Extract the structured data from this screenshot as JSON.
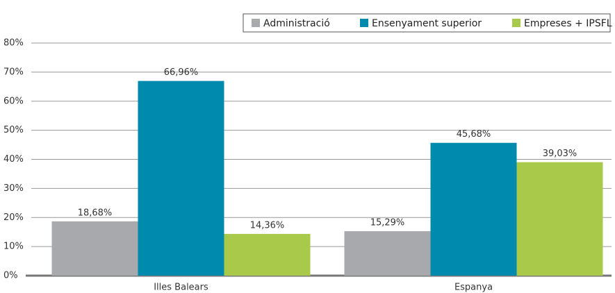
{
  "chart_data": {
    "type": "bar",
    "categories": [
      "Illes Balears",
      "Espanya"
    ],
    "series": [
      {
        "name": "Administració",
        "color": "#a7a9ac",
        "values": [
          18.68,
          15.29
        ],
        "value_labels": [
          "18,68%",
          "15,29%"
        ]
      },
      {
        "name": "Ensenyament superior",
        "color": "#008aad",
        "values": [
          66.96,
          45.68
        ],
        "value_labels": [
          "66,96%",
          "45,68%"
        ]
      },
      {
        "name": "Empreses + IPSFL",
        "color": "#a8c94a",
        "values": [
          14.36,
          39.03
        ],
        "value_labels": [
          "14,36%",
          "39,03%"
        ]
      }
    ],
    "ylim": [
      0,
      80
    ],
    "yticks": [
      {
        "value": 0,
        "label": "0%"
      },
      {
        "value": 10,
        "label": "10%"
      },
      {
        "value": 20,
        "label": "20%"
      },
      {
        "value": 30,
        "label": "30%"
      },
      {
        "value": 40,
        "label": "40%"
      },
      {
        "value": 50,
        "label": "50%"
      },
      {
        "value": 60,
        "label": "60%"
      },
      {
        "value": 70,
        "label": "70%"
      },
      {
        "value": 80,
        "label": "80%"
      }
    ],
    "grid": true,
    "legend": "top-right"
  }
}
